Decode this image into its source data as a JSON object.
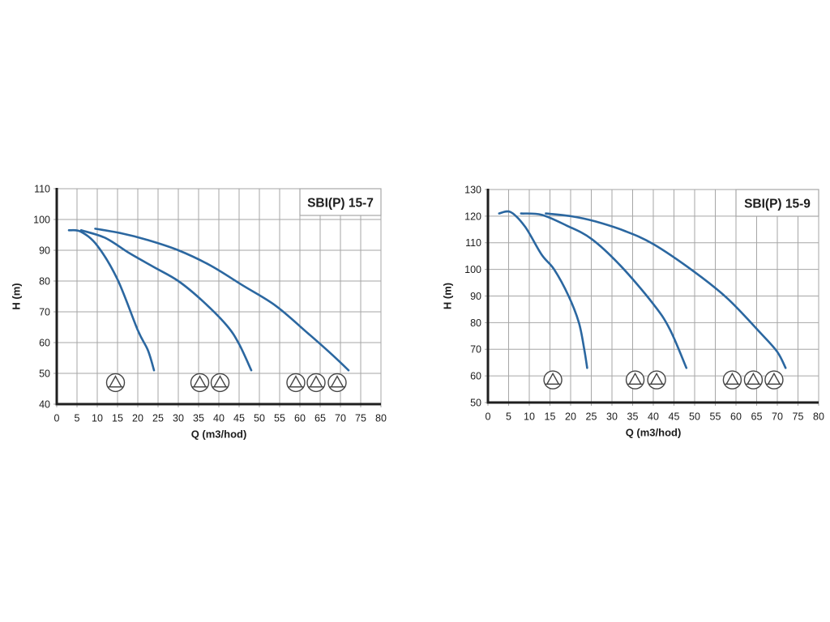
{
  "colors": {
    "background": "#ffffff",
    "curve": "#2b67a0",
    "grid": "#a6a6a6",
    "axis": "#1f1f1f",
    "text": "#1c1c1c",
    "icon_stroke": "#454545",
    "title_box_border": "#a6a6a6",
    "title_box_fill": "#ffffff"
  },
  "chart_data": [
    {
      "type": "line",
      "title": "SBI(P) 15-7",
      "xlabel": "Q (m3/hod)",
      "ylabel": "H (m)",
      "xlim": [
        0,
        80
      ],
      "x_tick_step": 5,
      "ylim": [
        40,
        110
      ],
      "y_tick_step": 10,
      "grid": true,
      "legend": false,
      "series": [
        {
          "name": "1 pump",
          "points": [
            [
              3,
              96.5
            ],
            [
              6,
              96
            ],
            [
              10,
              91.5
            ],
            [
              15,
              80.5
            ],
            [
              20,
              64
            ],
            [
              22.5,
              57.5
            ],
            [
              24,
              51
            ]
          ]
        },
        {
          "name": "2 pumps",
          "points": [
            [
              6,
              96.5
            ],
            [
              12,
              94
            ],
            [
              18,
              89
            ],
            [
              24,
              84.5
            ],
            [
              30,
              80
            ],
            [
              36,
              73.5
            ],
            [
              42,
              65.5
            ],
            [
              45,
              59.5
            ],
            [
              48,
              51
            ]
          ]
        },
        {
          "name": "3 pumps",
          "points": [
            [
              9.5,
              97
            ],
            [
              16,
              95.5
            ],
            [
              22,
              93.5
            ],
            [
              30,
              90
            ],
            [
              38,
              85
            ],
            [
              46,
              78.5
            ],
            [
              54,
              72
            ],
            [
              62,
              63
            ],
            [
              68,
              56
            ],
            [
              72,
              51
            ]
          ]
        }
      ],
      "pump_icon_groups": [
        {
          "pumps": 1,
          "centers_q": [
            14.5
          ],
          "center_h": 47
        },
        {
          "pumps": 2,
          "centers_q": [
            35.3,
            40.3
          ],
          "center_h": 47
        },
        {
          "pumps": 3,
          "centers_q": [
            59.0,
            64.0,
            69.2
          ],
          "center_h": 47
        }
      ]
    },
    {
      "type": "line",
      "title": "SBI(P) 15-9",
      "xlabel": "Q (m3/hod)",
      "ylabel": "H (m)",
      "xlim": [
        0,
        80
      ],
      "x_tick_step": 5,
      "ylim": [
        50,
        130
      ],
      "y_tick_step": 10,
      "grid": true,
      "legend": false,
      "series": [
        {
          "name": "1 pump",
          "points": [
            [
              2.7,
              121
            ],
            [
              5.5,
              121.5
            ],
            [
              9,
              116
            ],
            [
              13,
              105.5
            ],
            [
              16,
              100
            ],
            [
              19.5,
              90
            ],
            [
              22,
              80
            ],
            [
              23.3,
              70
            ],
            [
              24,
              63
            ]
          ]
        },
        {
          "name": "2 pumps",
          "points": [
            [
              8,
              121
            ],
            [
              13,
              120.5
            ],
            [
              19,
              116.5
            ],
            [
              25,
              111.5
            ],
            [
              32,
              101.5
            ],
            [
              40,
              87
            ],
            [
              44,
              77.5
            ],
            [
              48,
              63
            ]
          ]
        },
        {
          "name": "3 pumps",
          "points": [
            [
              14,
              121
            ],
            [
              20,
              120
            ],
            [
              26,
              118
            ],
            [
              33,
              114.5
            ],
            [
              40,
              109.5
            ],
            [
              50,
              99
            ],
            [
              58,
              89
            ],
            [
              66,
              76
            ],
            [
              70,
              69
            ],
            [
              72,
              63
            ]
          ]
        }
      ],
      "pump_icon_groups": [
        {
          "pumps": 1,
          "centers_q": [
            15.7
          ],
          "center_h": 58.5
        },
        {
          "pumps": 2,
          "centers_q": [
            35.6,
            40.8
          ],
          "center_h": 58.5
        },
        {
          "pumps": 3,
          "centers_q": [
            59.1,
            64.2,
            69.2
          ],
          "center_h": 58.5
        }
      ]
    }
  ]
}
